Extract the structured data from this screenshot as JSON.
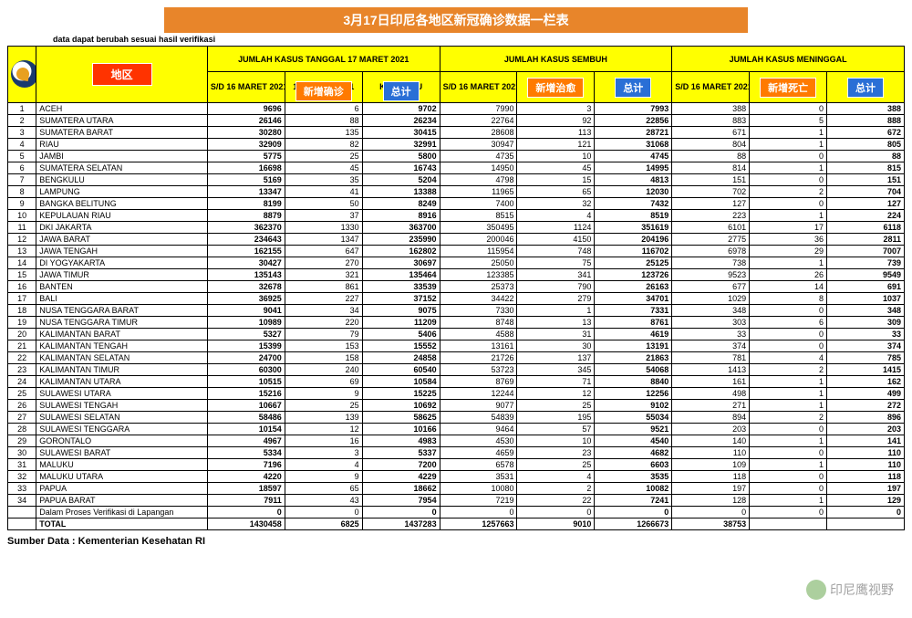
{
  "title": "3月17日印尼各地区新冠确诊数据一栏表",
  "note": "data dapat berubah sesuai hasil verifikasi",
  "source": "Sumber Data : Kementerian Kesehatan RI",
  "watermark": "印尼鹰视野",
  "header": {
    "region_label": "地区",
    "group_cases": "JUMLAH KASUS TANGGAL 17 MARET 2021",
    "group_recovered": "JUMLAH KASUS SEMBUH",
    "group_deaths": "JUMLAH KASUS MENINGGAL",
    "sub_prev": "S/D 16 MARET 2021",
    "sub_today": "17 MARET 2021",
    "sub_total_prefix": "KASUS KU",
    "badge_new_cases": "新增确诊",
    "badge_total": "总计",
    "badge_new_recovered": "新增治愈",
    "badge_new_deaths": "新增死亡"
  },
  "rows": [
    {
      "n": 1,
      "name": "ACEH",
      "c1": "9696",
      "c2": "6",
      "c3": "9702",
      "r1": "7990",
      "r2": "3",
      "r3": "7993",
      "d1": "388",
      "d2": "0",
      "d3": "388"
    },
    {
      "n": 2,
      "name": "SUMATERA UTARA",
      "c1": "26146",
      "c2": "88",
      "c3": "26234",
      "r1": "22764",
      "r2": "92",
      "r3": "22856",
      "d1": "883",
      "d2": "5",
      "d3": "888"
    },
    {
      "n": 3,
      "name": "SUMATERA BARAT",
      "c1": "30280",
      "c2": "135",
      "c3": "30415",
      "r1": "28608",
      "r2": "113",
      "r3": "28721",
      "d1": "671",
      "d2": "1",
      "d3": "672"
    },
    {
      "n": 4,
      "name": "RIAU",
      "c1": "32909",
      "c2": "82",
      "c3": "32991",
      "r1": "30947",
      "r2": "121",
      "r3": "31068",
      "d1": "804",
      "d2": "1",
      "d3": "805"
    },
    {
      "n": 5,
      "name": "JAMBI",
      "c1": "5775",
      "c2": "25",
      "c3": "5800",
      "r1": "4735",
      "r2": "10",
      "r3": "4745",
      "d1": "88",
      "d2": "0",
      "d3": "88"
    },
    {
      "n": 6,
      "name": "SUMATERA SELATAN",
      "c1": "16698",
      "c2": "45",
      "c3": "16743",
      "r1": "14950",
      "r2": "45",
      "r3": "14995",
      "d1": "814",
      "d2": "1",
      "d3": "815"
    },
    {
      "n": 7,
      "name": "BENGKULU",
      "c1": "5169",
      "c2": "35",
      "c3": "5204",
      "r1": "4798",
      "r2": "15",
      "r3": "4813",
      "d1": "151",
      "d2": "0",
      "d3": "151"
    },
    {
      "n": 8,
      "name": "LAMPUNG",
      "c1": "13347",
      "c2": "41",
      "c3": "13388",
      "r1": "11965",
      "r2": "65",
      "r3": "12030",
      "d1": "702",
      "d2": "2",
      "d3": "704"
    },
    {
      "n": 9,
      "name": "BANGKA BELITUNG",
      "c1": "8199",
      "c2": "50",
      "c3": "8249",
      "r1": "7400",
      "r2": "32",
      "r3": "7432",
      "d1": "127",
      "d2": "0",
      "d3": "127"
    },
    {
      "n": 10,
      "name": "KEPULAUAN RIAU",
      "c1": "8879",
      "c2": "37",
      "c3": "8916",
      "r1": "8515",
      "r2": "4",
      "r3": "8519",
      "d1": "223",
      "d2": "1",
      "d3": "224"
    },
    {
      "n": 11,
      "name": "DKI JAKARTA",
      "c1": "362370",
      "c2": "1330",
      "c3": "363700",
      "r1": "350495",
      "r2": "1124",
      "r3": "351619",
      "d1": "6101",
      "d2": "17",
      "d3": "6118"
    },
    {
      "n": 12,
      "name": "JAWA BARAT",
      "c1": "234643",
      "c2": "1347",
      "c3": "235990",
      "r1": "200046",
      "r2": "4150",
      "r3": "204196",
      "d1": "2775",
      "d2": "36",
      "d3": "2811"
    },
    {
      "n": 13,
      "name": "JAWA TENGAH",
      "c1": "162155",
      "c2": "647",
      "c3": "162802",
      "r1": "115954",
      "r2": "748",
      "r3": "116702",
      "d1": "6978",
      "d2": "29",
      "d3": "7007"
    },
    {
      "n": 14,
      "name": "DI YOGYAKARTA",
      "c1": "30427",
      "c2": "270",
      "c3": "30697",
      "r1": "25050",
      "r2": "75",
      "r3": "25125",
      "d1": "738",
      "d2": "1",
      "d3": "739"
    },
    {
      "n": 15,
      "name": "JAWA TIMUR",
      "c1": "135143",
      "c2": "321",
      "c3": "135464",
      "r1": "123385",
      "r2": "341",
      "r3": "123726",
      "d1": "9523",
      "d2": "26",
      "d3": "9549"
    },
    {
      "n": 16,
      "name": "BANTEN",
      "c1": "32678",
      "c2": "861",
      "c3": "33539",
      "r1": "25373",
      "r2": "790",
      "r3": "26163",
      "d1": "677",
      "d2": "14",
      "d3": "691"
    },
    {
      "n": 17,
      "name": "BALI",
      "c1": "36925",
      "c2": "227",
      "c3": "37152",
      "r1": "34422",
      "r2": "279",
      "r3": "34701",
      "d1": "1029",
      "d2": "8",
      "d3": "1037"
    },
    {
      "n": 18,
      "name": "NUSA TENGGARA BARAT",
      "c1": "9041",
      "c2": "34",
      "c3": "9075",
      "r1": "7330",
      "r2": "1",
      "r3": "7331",
      "d1": "348",
      "d2": "0",
      "d3": "348"
    },
    {
      "n": 19,
      "name": "NUSA TENGGARA TIMUR",
      "c1": "10989",
      "c2": "220",
      "c3": "11209",
      "r1": "8748",
      "r2": "13",
      "r3": "8761",
      "d1": "303",
      "d2": "6",
      "d3": "309"
    },
    {
      "n": 20,
      "name": "KALIMANTAN BARAT",
      "c1": "5327",
      "c2": "79",
      "c3": "5406",
      "r1": "4588",
      "r2": "31",
      "r3": "4619",
      "d1": "33",
      "d2": "0",
      "d3": "33"
    },
    {
      "n": 21,
      "name": "KALIMANTAN TENGAH",
      "c1": "15399",
      "c2": "153",
      "c3": "15552",
      "r1": "13161",
      "r2": "30",
      "r3": "13191",
      "d1": "374",
      "d2": "0",
      "d3": "374"
    },
    {
      "n": 22,
      "name": "KALIMANTAN SELATAN",
      "c1": "24700",
      "c2": "158",
      "c3": "24858",
      "r1": "21726",
      "r2": "137",
      "r3": "21863",
      "d1": "781",
      "d2": "4",
      "d3": "785"
    },
    {
      "n": 23,
      "name": "KALIMANTAN TIMUR",
      "c1": "60300",
      "c2": "240",
      "c3": "60540",
      "r1": "53723",
      "r2": "345",
      "r3": "54068",
      "d1": "1413",
      "d2": "2",
      "d3": "1415"
    },
    {
      "n": 24,
      "name": "KALIMANTAN UTARA",
      "c1": "10515",
      "c2": "69",
      "c3": "10584",
      "r1": "8769",
      "r2": "71",
      "r3": "8840",
      "d1": "161",
      "d2": "1",
      "d3": "162"
    },
    {
      "n": 25,
      "name": "SULAWESI UTARA",
      "c1": "15216",
      "c2": "9",
      "c3": "15225",
      "r1": "12244",
      "r2": "12",
      "r3": "12256",
      "d1": "498",
      "d2": "1",
      "d3": "499"
    },
    {
      "n": 26,
      "name": "SULAWESI TENGAH",
      "c1": "10667",
      "c2": "25",
      "c3": "10692",
      "r1": "9077",
      "r2": "25",
      "r3": "9102",
      "d1": "271",
      "d2": "1",
      "d3": "272"
    },
    {
      "n": 27,
      "name": "SULAWESI SELATAN",
      "c1": "58486",
      "c2": "139",
      "c3": "58625",
      "r1": "54839",
      "r2": "195",
      "r3": "55034",
      "d1": "894",
      "d2": "2",
      "d3": "896"
    },
    {
      "n": 28,
      "name": "SULAWESI TENGGARA",
      "c1": "10154",
      "c2": "12",
      "c3": "10166",
      "r1": "9464",
      "r2": "57",
      "r3": "9521",
      "d1": "203",
      "d2": "0",
      "d3": "203"
    },
    {
      "n": 29,
      "name": "GORONTALO",
      "c1": "4967",
      "c2": "16",
      "c3": "4983",
      "r1": "4530",
      "r2": "10",
      "r3": "4540",
      "d1": "140",
      "d2": "1",
      "d3": "141"
    },
    {
      "n": 30,
      "name": "SULAWESI BARAT",
      "c1": "5334",
      "c2": "3",
      "c3": "5337",
      "r1": "4659",
      "r2": "23",
      "r3": "4682",
      "d1": "110",
      "d2": "0",
      "d3": "110"
    },
    {
      "n": 31,
      "name": "MALUKU",
      "c1": "7196",
      "c2": "4",
      "c3": "7200",
      "r1": "6578",
      "r2": "25",
      "r3": "6603",
      "d1": "109",
      "d2": "1",
      "d3": "110"
    },
    {
      "n": 32,
      "name": "MALUKU UTARA",
      "c1": "4220",
      "c2": "9",
      "c3": "4229",
      "r1": "3531",
      "r2": "4",
      "r3": "3535",
      "d1": "118",
      "d2": "0",
      "d3": "118"
    },
    {
      "n": 33,
      "name": "PAPUA",
      "c1": "18597",
      "c2": "65",
      "c3": "18662",
      "r1": "10080",
      "r2": "2",
      "r3": "10082",
      "d1": "197",
      "d2": "0",
      "d3": "197"
    },
    {
      "n": 34,
      "name": "PAPUA BARAT",
      "c1": "7911",
      "c2": "43",
      "c3": "7954",
      "r1": "7219",
      "r2": "22",
      "r3": "7241",
      "d1": "128",
      "d2": "1",
      "d3": "129"
    }
  ],
  "verif_row": {
    "name": "Dalam Proses Verifikasi di Lapangan",
    "c1": "0",
    "c2": "0",
    "c3": "0",
    "r1": "0",
    "r2": "0",
    "r3": "0",
    "d1": "0",
    "d2": "0",
    "d3": "0"
  },
  "total_row": {
    "name": "TOTAL",
    "c1": "1430458",
    "c2": "6825",
    "c3": "1437283",
    "r1": "1257663",
    "r2": "9010",
    "r3": "1266673",
    "d1": "38753",
    "d2": "",
    "d3": ""
  }
}
